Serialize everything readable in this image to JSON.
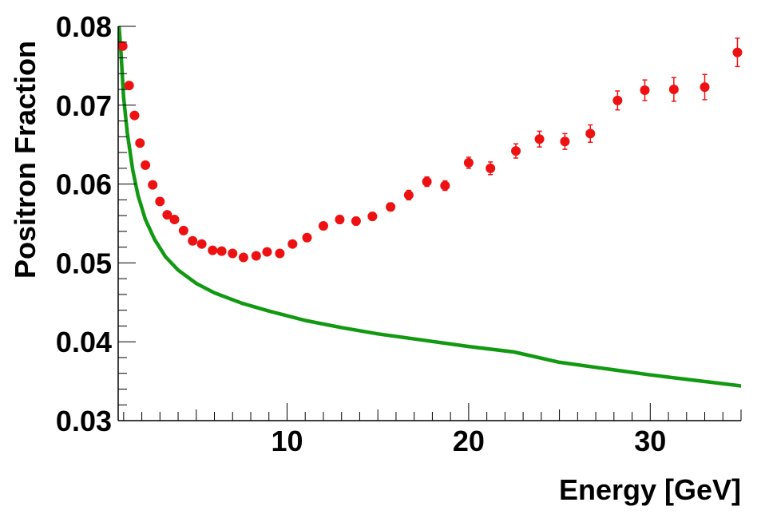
{
  "chart_data": {
    "type": "scatter",
    "title": "",
    "xlabel": "Energy [GeV]",
    "ylabel": "Positron Fraction",
    "xlim": [
      0.7,
      35
    ],
    "ylim": [
      0.03,
      0.08
    ],
    "xticks": [
      10,
      20,
      30
    ],
    "xtick_labels": [
      "10",
      "20",
      "30"
    ],
    "yticks": [
      0.03,
      0.04,
      0.05,
      0.06,
      0.07,
      0.08
    ],
    "ytick_labels": [
      "0.03",
      "0.04",
      "0.05",
      "0.06",
      "0.07",
      "0.08"
    ],
    "grid": false,
    "colors": {
      "data": "#ee1111",
      "model": "#119911",
      "axis": "#000000"
    },
    "series": [
      {
        "kind": "points_with_errors",
        "x": [
          0.95,
          1.3,
          1.6,
          1.9,
          2.2,
          2.6,
          3.0,
          3.4,
          3.8,
          4.3,
          4.8,
          5.3,
          5.9,
          6.4,
          7.0,
          7.6,
          8.3,
          8.9,
          9.6,
          10.3,
          11.1,
          12.0,
          12.9,
          13.8,
          14.7,
          15.7,
          16.7,
          17.7,
          18.7,
          20.0,
          21.2,
          22.6,
          23.9,
          25.3,
          26.7,
          28.2,
          29.7,
          31.3,
          33.0,
          34.8
        ],
        "y": [
          0.0775,
          0.0725,
          0.0687,
          0.0652,
          0.0624,
          0.0599,
          0.0578,
          0.0561,
          0.0555,
          0.0541,
          0.0528,
          0.0524,
          0.0516,
          0.0515,
          0.0512,
          0.0507,
          0.0509,
          0.0514,
          0.0512,
          0.0524,
          0.0532,
          0.0547,
          0.0555,
          0.0553,
          0.0559,
          0.0571,
          0.0586,
          0.0603,
          0.0598,
          0.0627,
          0.062,
          0.0642,
          0.0657,
          0.0654,
          0.0664,
          0.0706,
          0.0719,
          0.072,
          0.0723,
          0.0767
        ],
        "yerr": [
          0.0003,
          0.0003,
          0.0003,
          0.0003,
          0.0003,
          0.0003,
          0.0003,
          0.0003,
          0.0003,
          0.0003,
          0.0003,
          0.0003,
          0.0003,
          0.0003,
          0.0003,
          0.0003,
          0.0003,
          0.0003,
          0.0004,
          0.0004,
          0.0004,
          0.0004,
          0.0005,
          0.0005,
          0.0005,
          0.0005,
          0.0006,
          0.0006,
          0.0006,
          0.0007,
          0.0008,
          0.0009,
          0.001,
          0.001,
          0.0011,
          0.0012,
          0.0013,
          0.0015,
          0.0016,
          0.0018
        ]
      },
      {
        "kind": "curve",
        "x": [
          0.75,
          0.85,
          1.0,
          1.2,
          1.5,
          1.8,
          2.2,
          2.7,
          3.3,
          4.0,
          5.0,
          6.0,
          7.5,
          9.0,
          11.0,
          13.0,
          15.0,
          17.5,
          20.0,
          22.5,
          25.0,
          27.5,
          30.0,
          32.5,
          35.0
        ],
        "y": [
          0.08,
          0.0768,
          0.071,
          0.0665,
          0.0618,
          0.0585,
          0.0555,
          0.053,
          0.0508,
          0.0491,
          0.0474,
          0.0462,
          0.0449,
          0.0439,
          0.0427,
          0.0418,
          0.041,
          0.0402,
          0.0394,
          0.0387,
          0.0374,
          0.0366,
          0.0358,
          0.0351,
          0.0344
        ]
      }
    ]
  }
}
